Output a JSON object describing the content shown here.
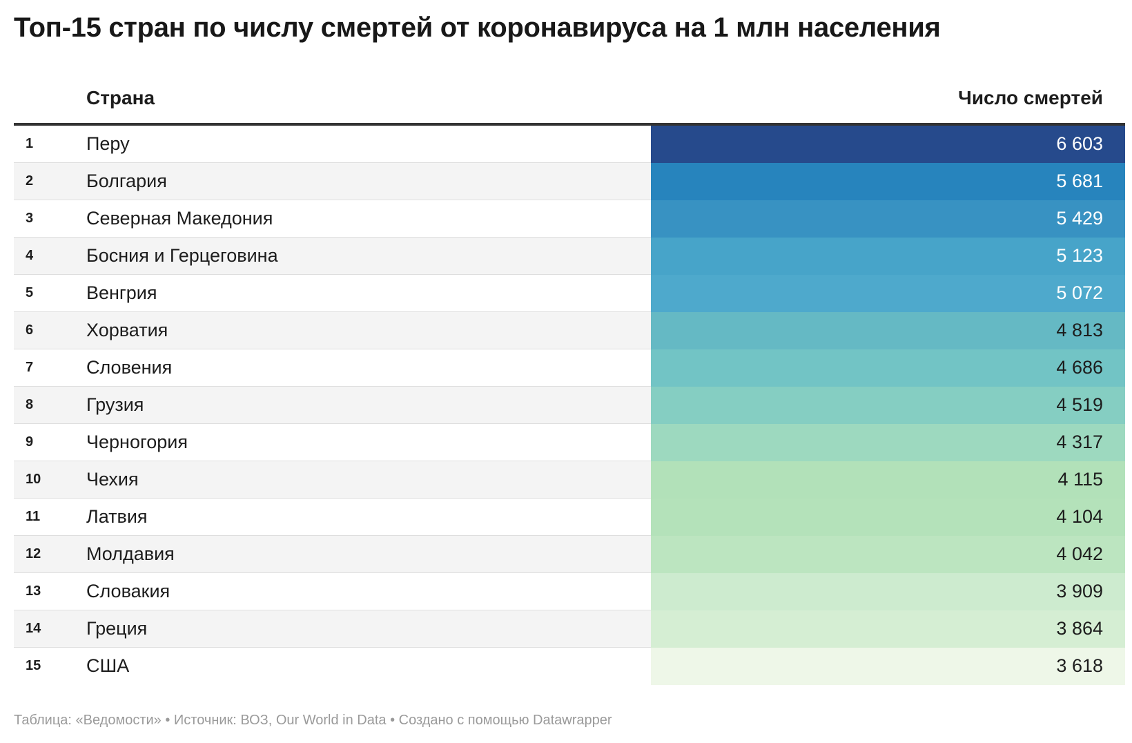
{
  "title": "Топ-15 стран по числу смертей от коронавируса на 1 млн населения",
  "footer": "Таблица: «Ведомости» • Источник: ВОЗ, Our World in Data • Создано с помощью Datawrapper",
  "chart_data": {
    "type": "table",
    "columns": [
      "",
      "Страна",
      "Число смертей"
    ],
    "rows": [
      {
        "rank": "1",
        "country": "Перу",
        "value": 6603,
        "label": "6 603",
        "color": "#264a8c",
        "text_color": "#ffffff"
      },
      {
        "rank": "2",
        "country": "Болгария",
        "value": 5681,
        "label": "5 681",
        "color": "#2784bd",
        "text_color": "#ffffff"
      },
      {
        "rank": "3",
        "country": "Северная Македония",
        "value": 5429,
        "label": "5 429",
        "color": "#3892c2",
        "text_color": "#ffffff"
      },
      {
        "rank": "4",
        "country": "Босния и Герцеговина",
        "value": 5123,
        "label": "5 123",
        "color": "#47a4c9",
        "text_color": "#ffffff"
      },
      {
        "rank": "5",
        "country": "Венгрия",
        "value": 5072,
        "label": "5 072",
        "color": "#4ea9cc",
        "text_color": "#ffffff"
      },
      {
        "rank": "6",
        "country": "Хорватия",
        "value": 4813,
        "label": "4 813",
        "color": "#65b9c4",
        "text_color": "#1d1d1d"
      },
      {
        "rank": "7",
        "country": "Словения",
        "value": 4686,
        "label": "4 686",
        "color": "#72c4c5",
        "text_color": "#1d1d1d"
      },
      {
        "rank": "8",
        "country": "Грузия",
        "value": 4519,
        "label": "4 519",
        "color": "#85cec2",
        "text_color": "#1d1d1d"
      },
      {
        "rank": "9",
        "country": "Черногория",
        "value": 4317,
        "label": "4 317",
        "color": "#9dd9bf",
        "text_color": "#1d1d1d"
      },
      {
        "rank": "10",
        "country": "Чехия",
        "value": 4115,
        "label": "4 115",
        "color": "#b2e1b9",
        "text_color": "#1d1d1d"
      },
      {
        "rank": "11",
        "country": "Латвия",
        "value": 4104,
        "label": "4 104",
        "color": "#b4e2ba",
        "text_color": "#1d1d1d"
      },
      {
        "rank": "12",
        "country": "Молдавия",
        "value": 4042,
        "label": "4 042",
        "color": "#bce5c0",
        "text_color": "#1d1d1d"
      },
      {
        "rank": "13",
        "country": "Словакия",
        "value": 3909,
        "label": "3 909",
        "color": "#cdebcf",
        "text_color": "#1d1d1d"
      },
      {
        "rank": "14",
        "country": "Греция",
        "value": 3864,
        "label": "3 864",
        "color": "#d5eed3",
        "text_color": "#1d1d1d"
      },
      {
        "rank": "15",
        "country": "США",
        "value": 3618,
        "label": "3 618",
        "color": "#eef7e8",
        "text_color": "#1d1d1d"
      }
    ]
  }
}
